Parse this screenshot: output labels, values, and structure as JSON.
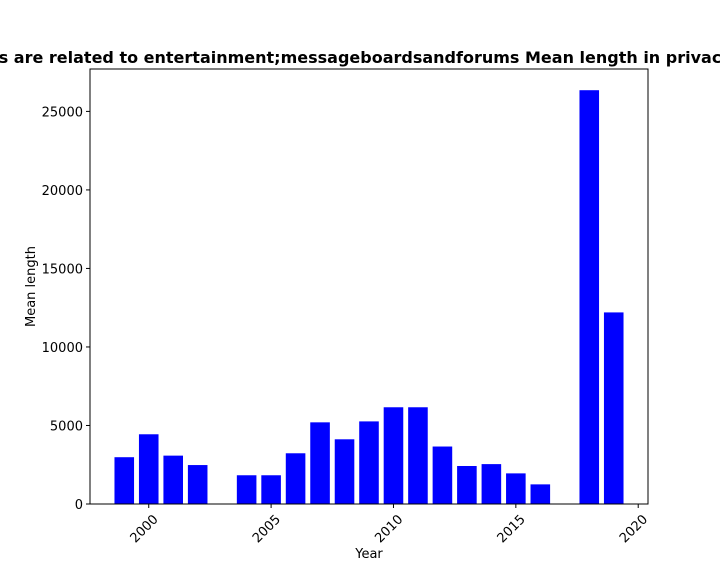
{
  "chart_data": {
    "type": "bar",
    "title": "s are related to entertainment;messageboardsandforums Mean length in privac",
    "xlabel": "Year",
    "ylabel": "Mean length",
    "bar_color": "#0000ff",
    "x_ticks": [
      "2000",
      "2005",
      "2010",
      "2015",
      "2020"
    ],
    "y_ticks": [
      "0",
      "5000",
      "10000",
      "15000",
      "20000",
      "25000"
    ],
    "xlim": [
      1997.6,
      2020.4
    ],
    "ylim": [
      0,
      27700
    ],
    "x": [
      1999,
      2000,
      2001,
      2002,
      2004,
      2005,
      2006,
      2007,
      2008,
      2009,
      2010,
      2011,
      2012,
      2013,
      2014,
      2015,
      2016,
      2018,
      2019
    ],
    "values": [
      2980,
      4440,
      3080,
      2480,
      1830,
      1830,
      3230,
      5200,
      4120,
      5260,
      6160,
      6160,
      3660,
      2420,
      2540,
      1950,
      1250,
      26350,
      12200
    ]
  }
}
